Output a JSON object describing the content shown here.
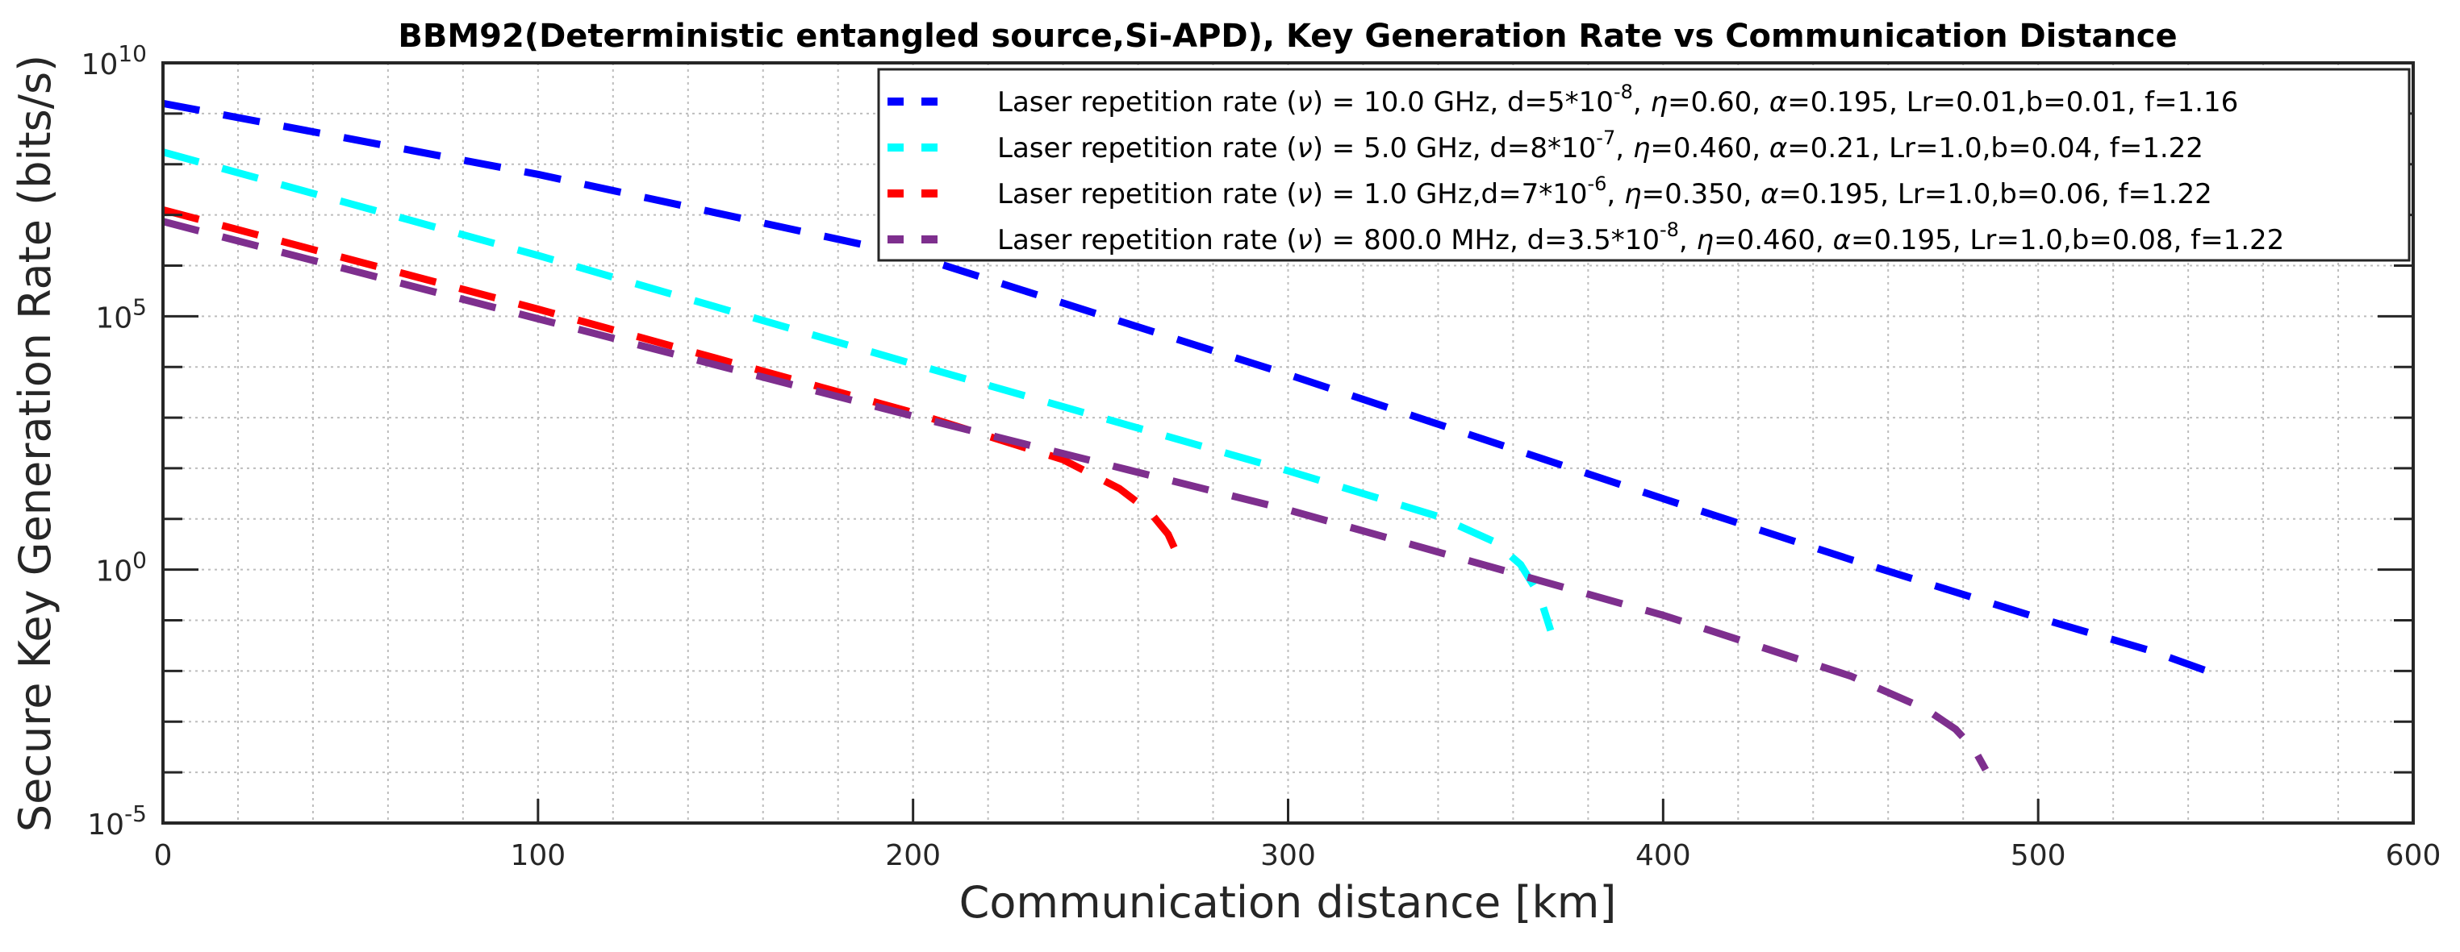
{
  "chart_data": {
    "type": "line",
    "title": "BBM92(Deterministic entangled source,Si-APD), Key Generation Rate vs Communication Distance",
    "xlabel": "Communication distance [km]",
    "ylabel": "Secure Key Generation Rate (bits/s)",
    "xlim": [
      0,
      600
    ],
    "ylim_log10": [
      -5,
      10
    ],
    "yscale": "log",
    "grid": true,
    "legend_placement": "top-right",
    "x_ticks": [
      "0",
      "100",
      "200",
      "300",
      "400",
      "500",
      "600"
    ],
    "x_tick_values": [
      0,
      100,
      200,
      300,
      400,
      500,
      600
    ],
    "y_ticks": [
      {
        "base": "10",
        "exp": "10",
        "value": 10
      },
      {
        "base": "10",
        "exp": "5",
        "value": 5
      },
      {
        "base": "10",
        "exp": "0",
        "value": 0
      },
      {
        "base": "10",
        "exp": "-5",
        "value": -5
      }
    ],
    "series": [
      {
        "name": "Laser repetition rate (ν) = 10.0 GHz, d=5*10^-8, η=0.60, α=0.195, Lr=0.01,b=0.01, f=1.16",
        "legend_parts": [
          "Laser repetition rate (",
          "ν",
          ") = 10.0 GHz, d=5*10",
          "-8",
          ", ",
          "η",
          "=0.60, ",
          "α",
          "=0.195, Lr=0.01,b=0.01, f=1.16"
        ],
        "color": "#0000ff",
        "x": [
          0,
          100,
          200,
          300,
          400,
          450,
          500,
          530,
          545
        ],
        "log10_y": [
          9.2,
          7.8,
          6.2,
          3.85,
          1.4,
          0.2,
          -0.95,
          -1.6,
          -2.0
        ]
      },
      {
        "name": "Laser repetition rate (ν) = 5.0 GHz, d=8*10^-7, η=0.460, α=0.21, Lr=1.0,b=0.04, f=1.22",
        "legend_parts": [
          "Laser repetition rate (",
          "ν",
          ") = 5.0 GHz, d=8*10",
          "-7",
          ", ",
          "η",
          "=0.460, ",
          "α",
          "=0.21, Lr=1.0,b=0.04, f=1.22"
        ],
        "color": "#00ffff",
        "x": [
          0,
          100,
          200,
          300,
          340,
          355,
          362,
          367,
          370
        ],
        "log10_y": [
          8.24,
          6.2,
          4.06,
          1.95,
          1.05,
          0.55,
          0.1,
          -0.5,
          -1.2
        ]
      },
      {
        "name": "Laser repetition rate (ν) = 1.0 GHz,d=7*10^-6, η=0.350, α=0.195, Lr=1.0,b=0.06, f=1.22",
        "legend_parts": [
          "Laser repetition rate (",
          "ν",
          ") = 1.0 GHz,d=7*10",
          "-6",
          ", ",
          "η",
          "=0.350, ",
          "α",
          "=0.195, Lr=1.0,b=0.06, f=1.22"
        ],
        "color": "#ff0000",
        "x": [
          0,
          100,
          200,
          240,
          255,
          263,
          268,
          272
        ],
        "log10_y": [
          7.1,
          5.14,
          3.1,
          2.17,
          1.6,
          1.15,
          0.7,
          0.05
        ]
      },
      {
        "name": "Laser repetition rate (ν) = 800.0 MHz, d=3.5*10^-8, η=0.460, α=0.195, Lr=1.0,b=0.08, f=1.22",
        "legend_parts": [
          "Laser repetition rate (",
          "ν",
          ") = 800.0 MHz, d=3.5*10",
          "-8",
          ", ",
          "η",
          "=0.460, ",
          "α",
          "=0.195, Lr=1.0,b=0.08, f=1.22"
        ],
        "color": "#7e2f8e",
        "x": [
          0,
          100,
          200,
          300,
          400,
          450,
          470,
          478,
          483,
          486
        ],
        "log10_y": [
          6.87,
          4.95,
          3.03,
          1.18,
          -0.9,
          -2.1,
          -2.75,
          -3.15,
          -3.55,
          -3.95
        ]
      }
    ]
  }
}
